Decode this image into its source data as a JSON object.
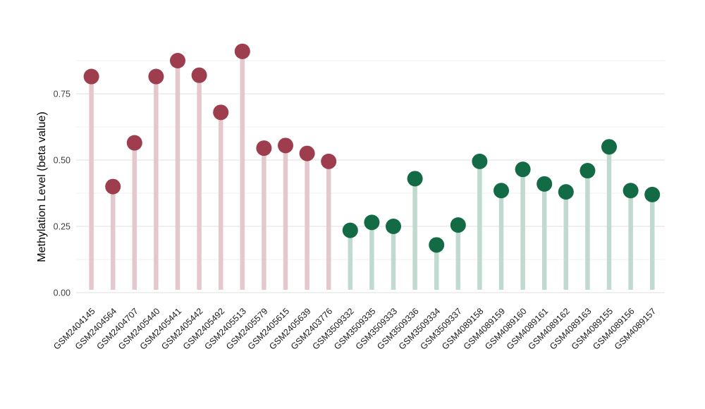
{
  "chart_data": {
    "type": "scatter",
    "style": "lollipop",
    "title": "",
    "xlabel": "",
    "ylabel": "Methylation Level (beta value)",
    "ylim": [
      0,
      0.96
    ],
    "yticks": [
      {
        "value": 0.0,
        "label": "0.00"
      },
      {
        "value": 0.25,
        "label": "0.25"
      },
      {
        "value": 0.5,
        "label": "0.50"
      },
      {
        "value": 0.75,
        "label": "0.75"
      }
    ],
    "minor_gridlines": [
      0.125,
      0.375,
      0.625,
      0.875
    ],
    "grid": "on",
    "legend": "none",
    "categories": [
      "GSM2404145",
      "GSM2404564",
      "GSM2404707",
      "GSM2405440",
      "GSM2405441",
      "GSM2405442",
      "GSM2405492",
      "GSM2405513",
      "GSM2405579",
      "GSM2405615",
      "GSM2405639",
      "GSM2403776",
      "GSM3509332",
      "GSM3509335",
      "GSM3509333",
      "GSM3509336",
      "GSM3509334",
      "GSM3509337",
      "GSM4089158",
      "GSM4089159",
      "GSM4089160",
      "GSM4089161",
      "GSM4089162",
      "GSM4089163",
      "GSM4089155",
      "GSM4089156",
      "GSM4089157"
    ],
    "values": [
      0.815,
      0.4,
      0.565,
      0.815,
      0.875,
      0.82,
      0.68,
      0.91,
      0.545,
      0.555,
      0.525,
      0.495,
      0.235,
      0.265,
      0.25,
      0.43,
      0.18,
      0.255,
      0.495,
      0.385,
      0.465,
      0.41,
      0.38,
      0.46,
      0.55,
      0.385,
      0.37
    ],
    "point_groups": [
      "maroon",
      "maroon",
      "maroon",
      "maroon",
      "maroon",
      "maroon",
      "maroon",
      "maroon",
      "maroon",
      "maroon",
      "maroon",
      "maroon",
      "green",
      "green",
      "green",
      "green",
      "green",
      "green",
      "green",
      "green",
      "green",
      "green",
      "green",
      "green",
      "green",
      "green",
      "green"
    ],
    "colors": {
      "maroon_dot": "#9e3d4d",
      "maroon_stem": "#e5c8ce",
      "green_dot": "#136b46",
      "green_stem": "#c0dacf",
      "major_gridline": "#e5e5e5",
      "minor_gridline": "#f1f1f1",
      "background": "#ffffff"
    }
  }
}
